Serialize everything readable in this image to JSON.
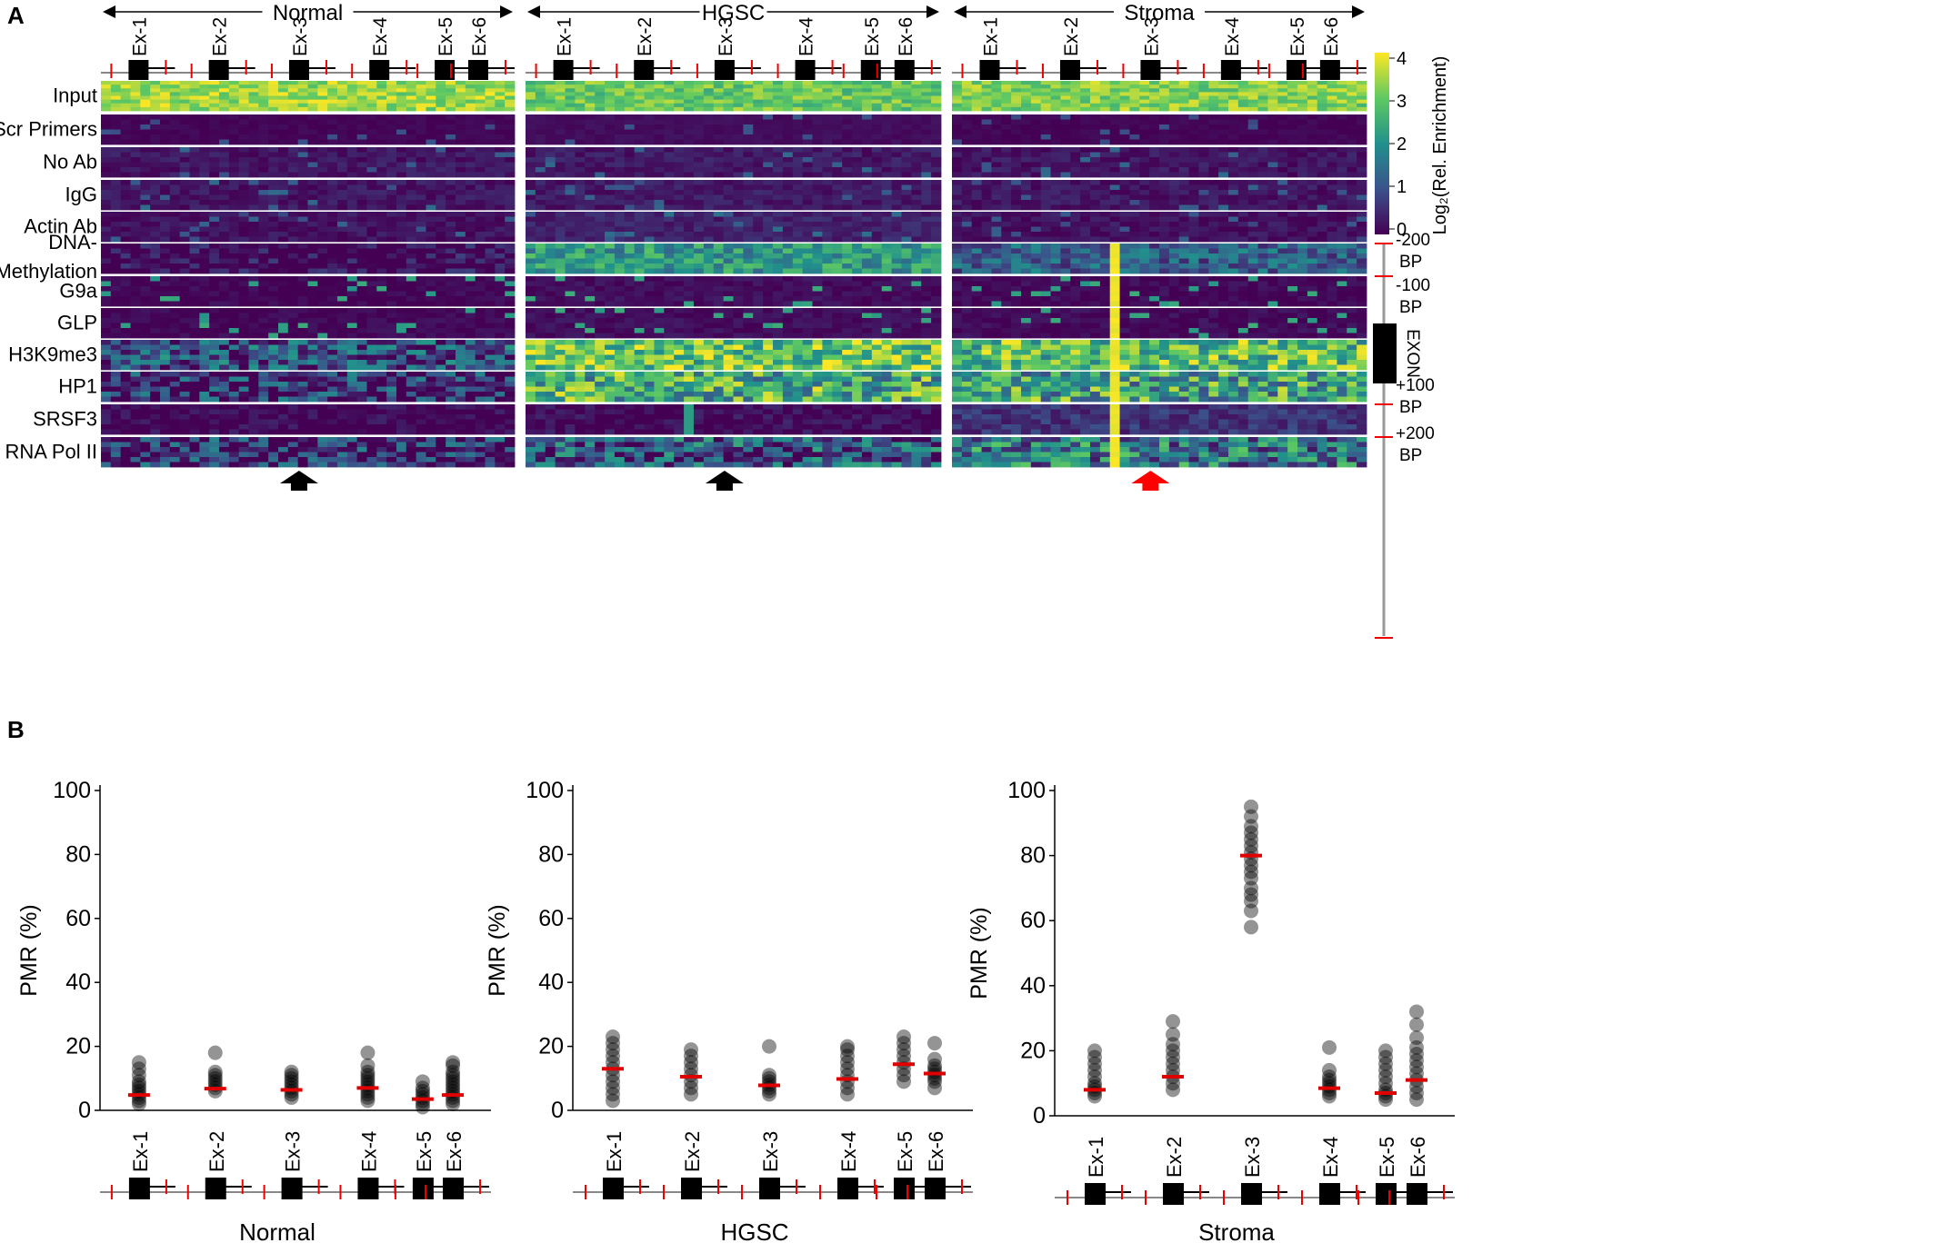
{
  "panel_a": {
    "letter": "A",
    "rows": [
      "Input",
      "Scr Primers",
      "No Ab",
      "IgG",
      "Actin Ab",
      "DNA-\nMethylation",
      "G9a",
      "GLP",
      "H3K9me3",
      "HP1",
      "SRSF3",
      "RNA Pol II"
    ],
    "groups": [
      "Normal",
      "HGSC",
      "Stroma"
    ],
    "exons": [
      "Ex-1",
      "Ex-2",
      "Ex-3",
      "Ex-4",
      "Ex-5",
      "Ex-6"
    ],
    "colorbar": {
      "label": "Log₂(Rel. Enrichment)",
      "ticks": [
        "4",
        "3",
        "2",
        "1",
        "0"
      ],
      "colors": [
        "#440154",
        "#3b528b",
        "#21918c",
        "#5ec962",
        "#fde725"
      ]
    },
    "locus_legend": [
      "-200\nBP",
      "-100\nBP",
      "EXON",
      "+100\nBP",
      "+200\nBP"
    ],
    "arrows": [
      {
        "group": "Normal",
        "exon": "Ex-3",
        "color": "#000000"
      },
      {
        "group": "HGSC",
        "exon": "Ex-3",
        "color": "#000000"
      },
      {
        "group": "Stroma",
        "exon": "Ex-3",
        "color": "#ff0000"
      }
    ]
  },
  "panel_b": {
    "letter": "B",
    "chart_data": [
      {
        "type": "scatter",
        "title": "Normal",
        "ylabel": "PMR (%)",
        "ylim": [
          0,
          100
        ],
        "yticks": [
          0,
          20,
          40,
          60,
          80,
          100
        ],
        "categories": [
          "Ex-1",
          "Ex-2",
          "Ex-3",
          "Ex-4",
          "Ex-5",
          "Ex-6"
        ],
        "points": [
          [
            2,
            3,
            4,
            5,
            6,
            7,
            8,
            9,
            11,
            13,
            15
          ],
          [
            6,
            7,
            8,
            9,
            10,
            11,
            12,
            18
          ],
          [
            4,
            5,
            6,
            7,
            8,
            9,
            10,
            11,
            12
          ],
          [
            3,
            4,
            5,
            6,
            7,
            8,
            9,
            10,
            11,
            12,
            14,
            18
          ],
          [
            1,
            2,
            3,
            4,
            5,
            6,
            7,
            9
          ],
          [
            2,
            3,
            4,
            5,
            6,
            7,
            8,
            9,
            10,
            11,
            12,
            14,
            15
          ]
        ],
        "medians": [
          4.8,
          6.8,
          6.4,
          7.0,
          3.5,
          4.8
        ]
      },
      {
        "type": "scatter",
        "title": "HGSC",
        "ylabel": "PMR (%)",
        "ylim": [
          0,
          100
        ],
        "yticks": [
          0,
          20,
          40,
          60,
          80,
          100
        ],
        "categories": [
          "Ex-1",
          "Ex-2",
          "Ex-3",
          "Ex-4",
          "Ex-5",
          "Ex-6"
        ],
        "points": [
          [
            3,
            5,
            7,
            9,
            11,
            13,
            15,
            17,
            19,
            21,
            23
          ],
          [
            5,
            7,
            9,
            11,
            13,
            15,
            17,
            19
          ],
          [
            5,
            6,
            7,
            8,
            9,
            10,
            11,
            20
          ],
          [
            5,
            7,
            9,
            11,
            13,
            15,
            17,
            19,
            20
          ],
          [
            9,
            11,
            13,
            15,
            17,
            19,
            21,
            23
          ],
          [
            7,
            9,
            10,
            11,
            12,
            13,
            14,
            16,
            21
          ]
        ],
        "medians": [
          13.0,
          10.5,
          7.8,
          9.8,
          14.4,
          11.5
        ]
      },
      {
        "type": "scatter",
        "title": "Stroma",
        "ylabel": "PMR (%)",
        "ylim": [
          0,
          100
        ],
        "yticks": [
          0,
          20,
          40,
          60,
          80,
          100
        ],
        "categories": [
          "Ex-1",
          "Ex-2",
          "Ex-3",
          "Ex-4",
          "Ex-5",
          "Ex-6"
        ],
        "points": [
          [
            6,
            7,
            8,
            9,
            10,
            12,
            14,
            16,
            18,
            20
          ],
          [
            8,
            10,
            12,
            14,
            16,
            18,
            20,
            22,
            25,
            29
          ],
          [
            58,
            63,
            66,
            68,
            70,
            73,
            75,
            77,
            79,
            81,
            83,
            85,
            87,
            89,
            92,
            95
          ],
          [
            6,
            7,
            8,
            9,
            10,
            11,
            12,
            14,
            21
          ],
          [
            5,
            6,
            7,
            8,
            10,
            12,
            14,
            16,
            18,
            20
          ],
          [
            5,
            7,
            9,
            11,
            13,
            15,
            17,
            19,
            21,
            24,
            28,
            32
          ]
        ],
        "medians": [
          8.0,
          12.0,
          80.0,
          8.5,
          7.0,
          11.0
        ]
      }
    ]
  }
}
